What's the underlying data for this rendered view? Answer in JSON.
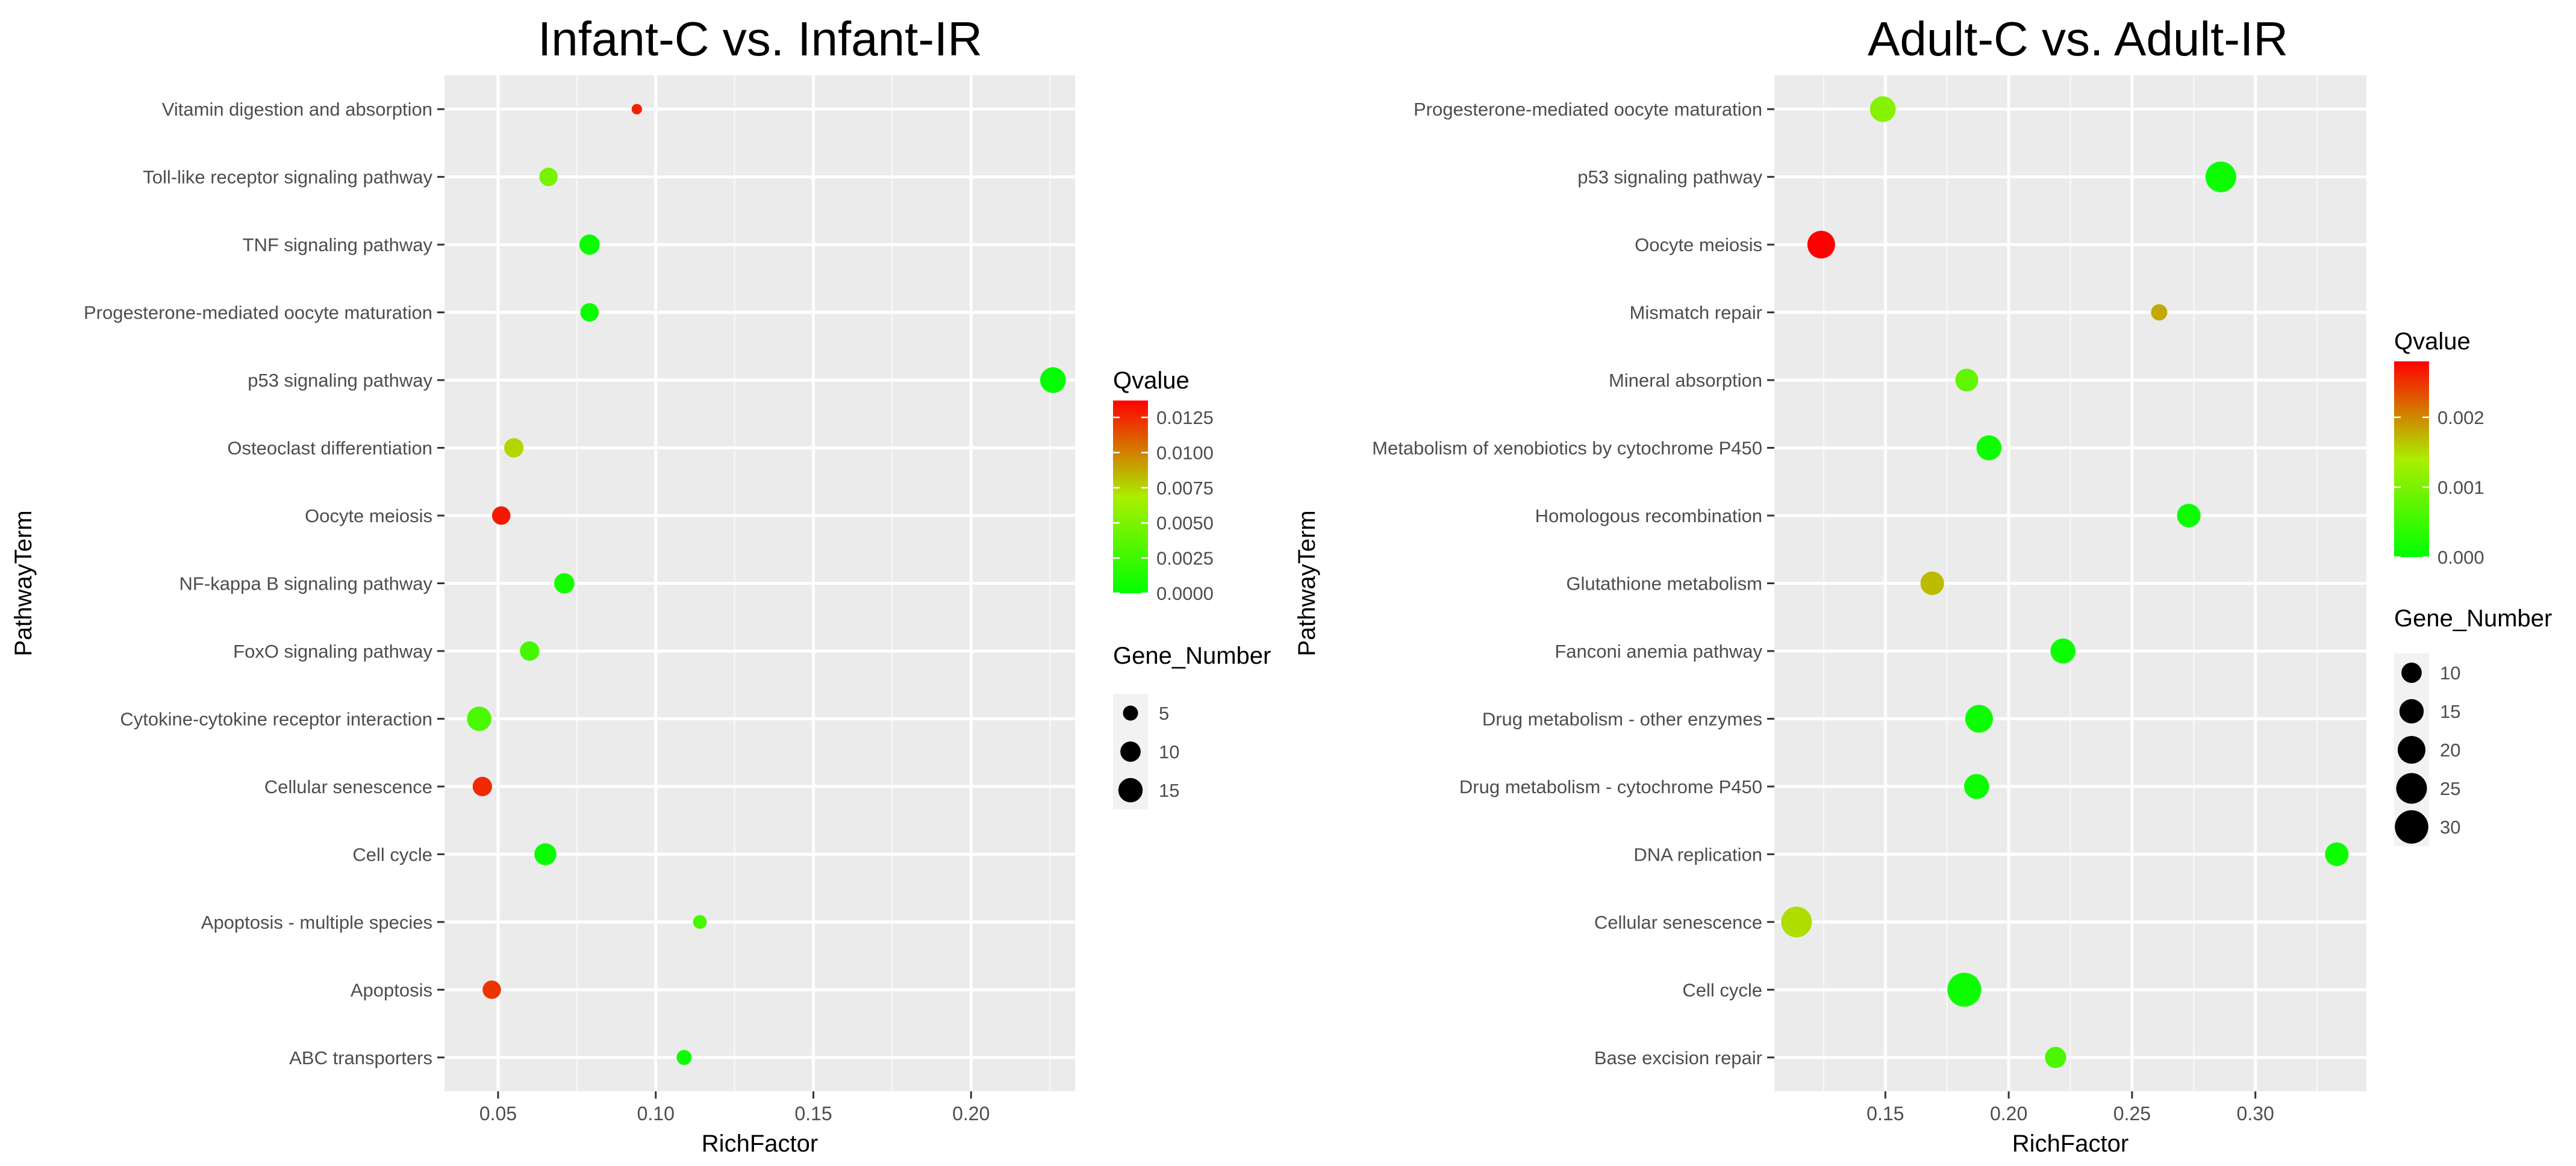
{
  "chart_data": [
    {
      "type": "scatter",
      "title": "Infant-C vs. Infant-IR",
      "xlabel": "RichFactor",
      "ylabel": "PathwayTerm",
      "xlim": [
        0.033,
        0.233
      ],
      "xticks": [
        0.05,
        0.1,
        0.15,
        0.2
      ],
      "xtick_labels": [
        "0.05",
        "0.10",
        "0.15",
        "0.20"
      ],
      "categories": [
        "Vitamin digestion and absorption",
        "Toll-like receptor signaling pathway",
        "TNF signaling pathway",
        "Progesterone-mediated oocyte maturation",
        "p53 signaling pathway",
        "Osteoclast differentiation",
        "Oocyte meiosis",
        "NF-kappa B signaling pathway",
        "FoxO signaling pathway",
        "Cytokine-cytokine receptor interaction",
        "Cellular senescence",
        "Cell cycle",
        "Apoptosis - multiple species",
        "Apoptosis",
        "ABC transporters"
      ],
      "points": [
        {
          "term": "Vitamin digestion and absorption",
          "rich_factor": 0.094,
          "qvalue": 0.0128,
          "gene_number": 2
        },
        {
          "term": "Toll-like receptor signaling pathway",
          "rich_factor": 0.066,
          "qvalue": 0.0048,
          "gene_number": 8
        },
        {
          "term": "TNF signaling pathway",
          "rich_factor": 0.079,
          "qvalue": 0.0004,
          "gene_number": 10
        },
        {
          "term": "Progesterone-mediated oocyte maturation",
          "rich_factor": 0.079,
          "qvalue": 0.0004,
          "gene_number": 8
        },
        {
          "term": "p53 signaling pathway",
          "rich_factor": 0.226,
          "qvalue": 0.0001,
          "gene_number": 17
        },
        {
          "term": "Osteoclast differentiation",
          "rich_factor": 0.055,
          "qvalue": 0.0075,
          "gene_number": 9
        },
        {
          "term": "Oocyte meiosis",
          "rich_factor": 0.051,
          "qvalue": 0.013,
          "gene_number": 8
        },
        {
          "term": "NF-kappa B signaling pathway",
          "rich_factor": 0.071,
          "qvalue": 0.0008,
          "gene_number": 10
        },
        {
          "term": "FoxO signaling pathway",
          "rich_factor": 0.06,
          "qvalue": 0.0028,
          "gene_number": 9
        },
        {
          "term": "Cytokine-cytokine receptor interaction",
          "rich_factor": 0.044,
          "qvalue": 0.003,
          "gene_number": 15
        },
        {
          "term": "Cellular senescence",
          "rich_factor": 0.045,
          "qvalue": 0.0125,
          "gene_number": 9
        },
        {
          "term": "Cell cycle",
          "rich_factor": 0.065,
          "qvalue": 0.0003,
          "gene_number": 12
        },
        {
          "term": "Apoptosis - multiple species",
          "rich_factor": 0.114,
          "qvalue": 0.0028,
          "gene_number": 4
        },
        {
          "term": "Apoptosis",
          "rich_factor": 0.048,
          "qvalue": 0.0122,
          "gene_number": 8
        },
        {
          "term": "ABC transporters",
          "rich_factor": 0.109,
          "qvalue": 0.0005,
          "gene_number": 5
        }
      ],
      "color_legend": {
        "title": "Qvalue",
        "range": [
          0,
          0.0137
        ],
        "ticks": [
          0,
          0.0025,
          0.005,
          0.0075,
          0.01,
          0.0125
        ],
        "tick_labels": [
          "0.0000",
          "0.0025",
          "0.0050",
          "0.0075",
          "0.0100",
          "0.0125"
        ],
        "low_color": "#00ff00",
        "mid_color": "#aaee00",
        "high_color": "#ff0000"
      },
      "size_legend": {
        "title": "Gene_Number",
        "range": [
          2,
          17
        ],
        "values": [
          5,
          10,
          15
        ],
        "labels": [
          "5",
          "10",
          "15"
        ]
      }
    },
    {
      "type": "scatter",
      "title": "Adult-C vs. Adult-IR",
      "xlabel": "RichFactor",
      "ylabel": "PathwayTerm",
      "xlim": [
        0.105,
        0.345
      ],
      "xticks": [
        0.15,
        0.2,
        0.25,
        0.3
      ],
      "xtick_labels": [
        "0.15",
        "0.20",
        "0.25",
        "0.30"
      ],
      "categories": [
        "Progesterone-mediated oocyte maturation",
        "p53 signaling pathway",
        "Oocyte meiosis",
        "Mismatch repair",
        "Mineral absorption",
        "Metabolism of xenobiotics by cytochrome P450",
        "Homologous recombination",
        "Glutathione metabolism",
        "Fanconi anemia pathway",
        "Drug metabolism - other enzymes",
        "Drug metabolism - cytochrome P450",
        "DNA replication",
        "Cellular senescence",
        "Cell cycle",
        "Base excision repair"
      ],
      "points": [
        {
          "term": "Progesterone-mediated oocyte maturation",
          "rich_factor": 0.149,
          "qvalue": 0.0011,
          "gene_number": 17
        },
        {
          "term": "p53 signaling pathway",
          "rich_factor": 0.286,
          "qvalue": 0.0001,
          "gene_number": 25
        },
        {
          "term": "Oocyte meiosis",
          "rich_factor": 0.124,
          "qvalue": 0.0028,
          "gene_number": 20
        },
        {
          "term": "Mismatch repair",
          "rich_factor": 0.261,
          "qvalue": 0.0018,
          "gene_number": 6
        },
        {
          "term": "Mineral absorption",
          "rich_factor": 0.183,
          "qvalue": 0.0008,
          "gene_number": 13
        },
        {
          "term": "Metabolism of xenobiotics by cytochrome P450",
          "rich_factor": 0.192,
          "qvalue": 0.0001,
          "gene_number": 16
        },
        {
          "term": "Homologous recombination",
          "rich_factor": 0.273,
          "qvalue": 0.0001,
          "gene_number": 14
        },
        {
          "term": "Glutathione metabolism",
          "rich_factor": 0.169,
          "qvalue": 0.0017,
          "gene_number": 14
        },
        {
          "term": "Fanconi anemia pathway",
          "rich_factor": 0.222,
          "qvalue": 0.0001,
          "gene_number": 16
        },
        {
          "term": "Drug metabolism - other enzymes",
          "rich_factor": 0.188,
          "qvalue": 0.0001,
          "gene_number": 20
        },
        {
          "term": "Drug metabolism - cytochrome P450",
          "rich_factor": 0.187,
          "qvalue": 0.0001,
          "gene_number": 16
        },
        {
          "term": "DNA replication",
          "rich_factor": 0.333,
          "qvalue": 0.0001,
          "gene_number": 14
        },
        {
          "term": "Cellular senescence",
          "rich_factor": 0.114,
          "qvalue": 0.0015,
          "gene_number": 25
        },
        {
          "term": "Cell cycle",
          "rich_factor": 0.182,
          "qvalue": 0.0001,
          "gene_number": 31
        },
        {
          "term": "Base excision repair",
          "rich_factor": 0.219,
          "qvalue": 0.0006,
          "gene_number": 11
        }
      ],
      "color_legend": {
        "title": "Qvalue",
        "range": [
          0,
          0.0028
        ],
        "ticks": [
          0,
          0.001,
          0.002
        ],
        "tick_labels": [
          "0.000",
          "0.001",
          "0.002"
        ],
        "low_color": "#00ff00",
        "mid_color": "#aaee00",
        "high_color": "#ff0000"
      },
      "size_legend": {
        "title": "Gene_Number",
        "range": [
          6,
          31
        ],
        "values": [
          10,
          15,
          20,
          25,
          30
        ],
        "labels": [
          "10",
          "15",
          "20",
          "25",
          "30"
        ]
      }
    }
  ]
}
